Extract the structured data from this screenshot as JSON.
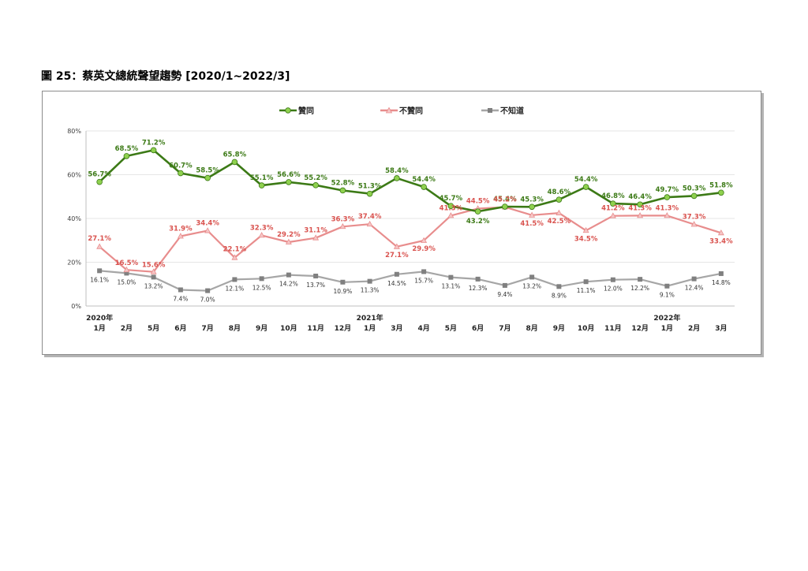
{
  "figure": {
    "title": "圖 25：蔡英文總統聲望趨勢  [2020/1~2022/3]"
  },
  "chart_data": {
    "type": "line",
    "ylim": [
      0,
      80
    ],
    "yticks": [
      "0%",
      "20%",
      "40%",
      "60%",
      "80%"
    ],
    "grid": true,
    "legend_position": "top",
    "categories": [
      "1月",
      "2月",
      "5月",
      "6月",
      "7月",
      "8月",
      "9月",
      "10月",
      "11月",
      "12月",
      "1月",
      "3月",
      "4月",
      "5月",
      "6月",
      "7月",
      "8月",
      "9月",
      "10月",
      "11月",
      "12月",
      "1月",
      "2月",
      "3月"
    ],
    "year_labels": [
      {
        "index": 0,
        "label": "2020年"
      },
      {
        "index": 10,
        "label": "2021年"
      },
      {
        "index": 21,
        "label": "2022年"
      }
    ],
    "series": [
      {
        "name": "贊同",
        "color": "#3c7a16",
        "label_color": "#3c7a16",
        "marker": "circle",
        "values": [
          56.7,
          68.5,
          71.2,
          60.7,
          58.5,
          65.8,
          55.1,
          56.6,
          55.2,
          52.8,
          51.3,
          58.4,
          54.4,
          45.7,
          43.2,
          45.4,
          45.3,
          48.6,
          54.4,
          46.8,
          46.4,
          49.7,
          50.3,
          51.8
        ],
        "labels": [
          "56.7%",
          "68.5%",
          "71.2%",
          "60.7%",
          "58.5%",
          "65.8%",
          "55.1%",
          "56.6%",
          "55.2%",
          "52.8%",
          "51.3%",
          "58.4%",
          "54.4%",
          "45.7%",
          "43.2%",
          "45.4%",
          "45.3%",
          "48.6%",
          "54.4%",
          "46.8%",
          "46.4%",
          "49.7%",
          "50.3%",
          "51.8%"
        ]
      },
      {
        "name": "不贊同",
        "color": "#e88d8d",
        "label_color": "#d9534f",
        "marker": "triangle",
        "values": [
          27.1,
          16.5,
          15.6,
          31.9,
          34.4,
          22.1,
          32.3,
          29.2,
          31.1,
          36.3,
          37.4,
          27.1,
          29.9,
          41.3,
          44.5,
          45.2,
          41.5,
          42.5,
          34.5,
          41.2,
          41.3,
          41.3,
          37.3,
          33.4
        ],
        "labels": [
          "27.1%",
          "16.5%",
          "15.6%",
          "31.9%",
          "34.4%",
          "22.1%",
          "32.3%",
          "29.2%",
          "31.1%",
          "36.3%",
          "37.4%",
          "27.1%",
          "29.9%",
          "41.3%",
          "44.5%",
          "45.2%",
          "41.5%",
          "42.5%",
          "34.5%",
          "41.2%",
          "41.3%",
          "41.3%",
          "37.3%",
          "33.4%"
        ]
      },
      {
        "name": "不知道",
        "color": "#a6a6a6",
        "label_color": "#333333",
        "marker": "square",
        "values": [
          16.1,
          15.0,
          13.2,
          7.4,
          7.0,
          12.1,
          12.5,
          14.2,
          13.7,
          10.9,
          11.3,
          14.5,
          15.7,
          13.1,
          12.3,
          9.4,
          13.2,
          8.9,
          11.1,
          12.0,
          12.2,
          9.1,
          12.4,
          14.8
        ],
        "labels": [
          "16.1%",
          "15.0%",
          "13.2%",
          "7.4%",
          "7.0%",
          "12.1%",
          "12.5%",
          "14.2%",
          "13.7%",
          "10.9%",
          "11.3%",
          "14.5%",
          "15.7%",
          "13.1%",
          "12.3%",
          "9.4%",
          "13.2%",
          "8.9%",
          "11.1%",
          "12.0%",
          "12.2%",
          "9.1%",
          "12.4%",
          "14.8%"
        ]
      }
    ]
  }
}
